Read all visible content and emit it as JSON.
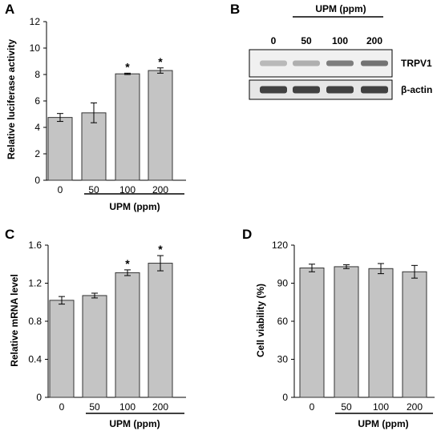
{
  "colors": {
    "bar_fill": "#c4c4c4",
    "bar_stroke": "#333333",
    "axis": "#000000"
  },
  "chart_data": [
    {
      "panel": "A",
      "type": "bar",
      "categories": [
        "0",
        "50",
        "100",
        "200"
      ],
      "values": [
        4.75,
        5.1,
        8.05,
        8.3
      ],
      "errors": [
        0.3,
        0.75,
        0.05,
        0.2
      ],
      "significant": [
        false,
        false,
        true,
        true
      ],
      "significance_mark": "*",
      "ylabel": "Relative luciferase activity",
      "group_label": "UPM (ppm)",
      "ylim": [
        0,
        12
      ],
      "yticks": [
        "0",
        "2",
        "4",
        "6",
        "8",
        "10",
        "12"
      ]
    },
    {
      "panel": "C",
      "type": "bar",
      "categories": [
        "0",
        "50",
        "100",
        "200"
      ],
      "values": [
        1.02,
        1.07,
        1.31,
        1.41
      ],
      "errors": [
        0.04,
        0.025,
        0.03,
        0.08
      ],
      "significant": [
        false,
        false,
        true,
        true
      ],
      "significance_mark": "*",
      "ylabel": "Relative mRNA level",
      "group_label": "UPM (ppm)",
      "ylim": [
        0,
        1.6
      ],
      "yticks": [
        "0",
        "0.4",
        "0.8",
        "1.2",
        "1.6"
      ]
    },
    {
      "panel": "D",
      "type": "bar",
      "categories": [
        "0",
        "50",
        "100",
        "200"
      ],
      "values": [
        102,
        103,
        101.5,
        99
      ],
      "errors": [
        3,
        1.5,
        4,
        5
      ],
      "significant": [
        false,
        false,
        false,
        false
      ],
      "significance_mark": "*",
      "ylabel": "Cell viability (%)",
      "group_label": "UPM (ppm)",
      "ylim": [
        0,
        120
      ],
      "yticks": [
        "0",
        "30",
        "60",
        "90",
        "120"
      ]
    }
  ],
  "blot": {
    "panel": "B",
    "group_label": "UPM (ppm)",
    "lanes": [
      "0",
      "50",
      "100",
      "200"
    ],
    "rows": [
      {
        "label": "TRPV1",
        "intensities": [
          0.25,
          0.3,
          0.55,
          0.6
        ]
      },
      {
        "label": "β-actin",
        "intensities": [
          0.85,
          0.85,
          0.85,
          0.85
        ]
      }
    ]
  }
}
